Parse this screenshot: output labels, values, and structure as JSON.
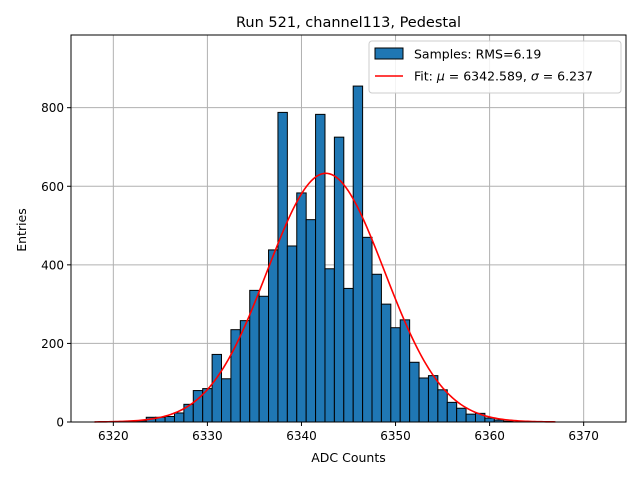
{
  "chart_data": {
    "type": "bar",
    "title": "Run 521, channel113, Pedestal",
    "xlabel": "ADC Counts",
    "ylabel": "Entries",
    "xlim": [
      6315.5,
      6374.5
    ],
    "ylim": [
      0,
      985
    ],
    "xticks": [
      6320,
      6330,
      6340,
      6350,
      6360,
      6370
    ],
    "yticks": [
      0,
      200,
      400,
      600,
      800
    ],
    "grid": true,
    "legend_position": "top-right",
    "histogram": {
      "name": "Samples: RMS=6.19",
      "color": "#1f77b4",
      "bin_width": 1,
      "x": [
        6320,
        6321,
        6322,
        6323,
        6324,
        6325,
        6326,
        6327,
        6328,
        6329,
        6330,
        6331,
        6332,
        6333,
        6334,
        6335,
        6336,
        6337,
        6338,
        6339,
        6340,
        6341,
        6342,
        6343,
        6344,
        6345,
        6346,
        6347,
        6348,
        6349,
        6350,
        6351,
        6352,
        6353,
        6354,
        6355,
        6356,
        6357,
        6358,
        6359,
        6360,
        6361,
        6362
      ],
      "values": [
        1,
        1,
        2,
        3,
        12,
        12,
        14,
        23,
        45,
        80,
        85,
        172,
        110,
        235,
        258,
        335,
        320,
        438,
        788,
        448,
        583,
        515,
        783,
        390,
        725,
        340,
        855,
        470,
        376,
        300,
        240,
        260,
        152,
        112,
        118,
        82,
        50,
        35,
        20,
        22,
        10,
        5,
        2
      ]
    },
    "fit": {
      "name": "Fit: μ = 6342.589, σ = 6.237",
      "color": "#ff0000",
      "mu": 6342.589,
      "sigma": 6.237,
      "amplitude": 633,
      "x_range": [
        6318.0,
        6367.0
      ]
    }
  },
  "legend": {
    "hist_label": "Samples: RMS=6.19",
    "fit_label_prefix": "Fit: ",
    "fit_mu_symbol": "μ",
    "fit_mu_text": " = 6342.589, ",
    "fit_sigma_symbol": "σ",
    "fit_sigma_text": " = 6.237"
  }
}
